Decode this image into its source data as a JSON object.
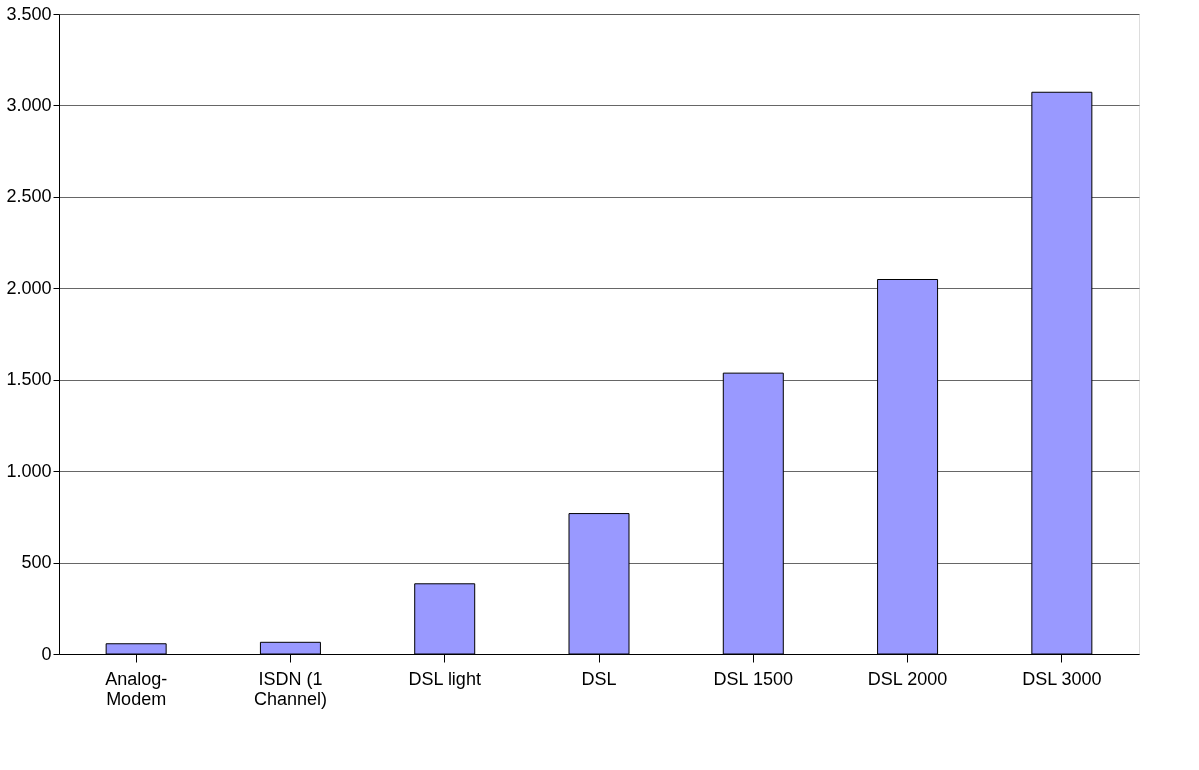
{
  "chart_data": {
    "type": "bar",
    "categories": [
      "Analog-\nModem",
      "ISDN (1\nChannel)",
      "DSL light",
      "DSL",
      "DSL 1500",
      "DSL 2000",
      "DSL 3000"
    ],
    "values": [
      56,
      64,
      384,
      768,
      1536,
      2048,
      3072
    ],
    "color": "#9999ff",
    "ylim": [
      0,
      3500
    ],
    "yticks": [
      {
        "value": 0,
        "label": "0"
      },
      {
        "value": 500,
        "label": "500"
      },
      {
        "value": 1000,
        "label": "1.000"
      },
      {
        "value": 1500,
        "label": "1.500"
      },
      {
        "value": 2000,
        "label": "2.000"
      },
      {
        "value": 2500,
        "label": "2.500"
      },
      {
        "value": 3000,
        "label": "3.000"
      },
      {
        "value": 3500,
        "label": "3.500"
      }
    ],
    "grid": "y"
  }
}
